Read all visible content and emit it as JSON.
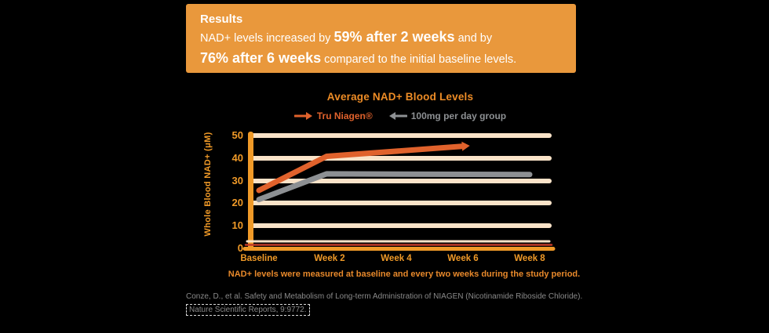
{
  "banner": {
    "title": "Results",
    "line1_normal1": "NAD+ levels increased by ",
    "line1_bold": "59% after 2 weeks",
    "line1_normal2": " and by",
    "line2_bold": "76% after 6 weeks",
    "line2_normal": " compared to the initial baseline levels."
  },
  "chart_data": {
    "type": "line",
    "title": "Average NAD+ Blood Levels",
    "ylabel": "Whole Blood NAD+ (μM)",
    "xlabel": "",
    "ylim": [
      0,
      50
    ],
    "ytick_step": 10,
    "yticks": [
      "50",
      "40",
      "30",
      "20",
      "10",
      "0"
    ],
    "categories": [
      "Baseline",
      "Week 2",
      "Week 4",
      "Week 6",
      "Week 8"
    ],
    "grid": true,
    "legend_position": "top",
    "series": [
      {
        "name": "Tru Niagen®",
        "color": "#E0622C",
        "x_weeks": [
          0,
          2,
          6
        ],
        "values": [
          25.5,
          40.5,
          44.9
        ],
        "arrow_end": true
      },
      {
        "name": "100mg per day group",
        "color": "#8D9093",
        "x_weeks": [
          0,
          2,
          8
        ],
        "values": [
          21.5,
          32.8,
          32.5
        ],
        "arrow_end": false
      }
    ],
    "caption": "NAD+ levels were measured at baseline and every two weeks during the study period."
  },
  "footnote": {
    "line1": "Conze, D., et al. Safety and Metabolism of Long-term Administration of NIAGEN (Nicotinamide Riboside Chloride).",
    "line2": "Nature Scientific Reports, 9:9772."
  },
  "colors": {
    "banner_bg": "#E9983C",
    "banner_text": "#FFFFFF",
    "chart_orange": "#E0622C",
    "axis_orange": "#F09A28",
    "title_orange": "#ED8C26",
    "gridline_cream": "#FAE3C8",
    "axis_red": "#C03A28",
    "gray_line": "#949597",
    "footnote_gray": "#8A8A8A",
    "background": "#000000"
  }
}
